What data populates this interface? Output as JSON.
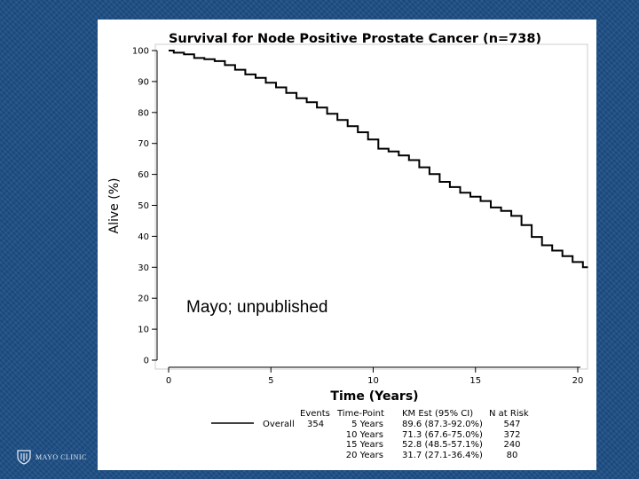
{
  "chart_data": {
    "type": "line",
    "title": "Survival for Node Positive Prostate Cancer (n=738)",
    "xlabel": "Time (Years)",
    "ylabel": "Alive (%)",
    "xlim": [
      0,
      20.5
    ],
    "ylim": [
      0,
      100
    ],
    "x_ticks": [
      0,
      5,
      10,
      15,
      20
    ],
    "y_ticks": [
      0,
      10,
      20,
      30,
      40,
      50,
      60,
      70,
      80,
      90,
      100
    ],
    "series": [
      {
        "name": "Overall",
        "x": [
          0,
          0.5,
          1.0,
          1.5,
          2.0,
          2.5,
          3.0,
          3.5,
          4.0,
          4.5,
          5.0,
          5.5,
          6.0,
          6.5,
          7.0,
          7.5,
          8.0,
          8.5,
          9.0,
          9.5,
          10.0,
          10.5,
          11.0,
          11.5,
          12.0,
          12.5,
          13.0,
          13.5,
          14.0,
          14.5,
          15.0,
          15.5,
          16.0,
          16.5,
          17.0,
          17.5,
          18.0,
          18.5,
          19.0,
          19.5,
          20.0,
          20.5
        ],
        "y": [
          100,
          99.3,
          98.8,
          97.6,
          97.2,
          96.6,
          95.3,
          93.8,
          92.3,
          91.2,
          89.6,
          88.1,
          86.3,
          84.6,
          83.3,
          81.6,
          79.6,
          77.6,
          75.6,
          73.6,
          71.3,
          68.3,
          67.4,
          66.1,
          64.6,
          62.3,
          60.1,
          57.6,
          55.9,
          54.1,
          52.8,
          51.4,
          49.3,
          48.2,
          46.6,
          43.6,
          39.8,
          37.1,
          35.4,
          33.6,
          31.7,
          30.0
        ]
      }
    ],
    "legend": "bottom",
    "grid": false,
    "table": {
      "headers": [
        "Events",
        "Time-Point",
        "KM Est (95% CI)",
        "N at Risk"
      ],
      "series_label": "Overall",
      "events": "354",
      "rows": [
        {
          "time_point": "5 Years",
          "km_est": "89.6 (87.3-92.0%)",
          "n_at_risk": "547"
        },
        {
          "time_point": "10 Years",
          "km_est": "71.3 (67.6-75.0%)",
          "n_at_risk": "372"
        },
        {
          "time_point": "15 Years",
          "km_est": "52.8 (48.5-57.1%)",
          "n_at_risk": "240"
        },
        {
          "time_point": "20 Years",
          "km_est": "31.7 (27.1-36.4%)",
          "n_at_risk": "80"
        }
      ]
    }
  },
  "annotation": "Mayo; unpublished",
  "logo_text": "MAYO CLINIC",
  "colors": {
    "background": "#1d4f86",
    "panel": "#ffffff",
    "line": "#000000"
  }
}
